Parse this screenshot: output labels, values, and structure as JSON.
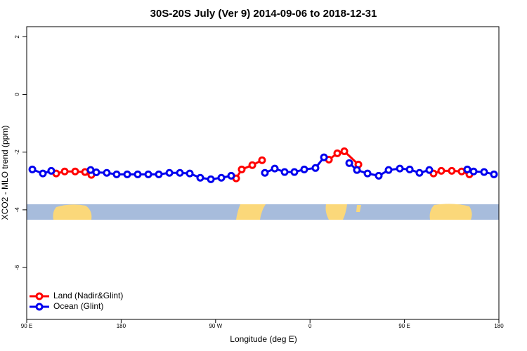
{
  "chart_data": {
    "type": "line",
    "title": "30S-20S July (Ver 9)   2014-09-06 to 2018-12-31",
    "xlabel": "Longitude (deg E)",
    "ylabel": "XCO2 - MLO trend (ppm)",
    "xlim": [
      90,
      540
    ],
    "xticks": [
      {
        "value": 90,
        "label": "90 E"
      },
      {
        "value": 180,
        "label": "180"
      },
      {
        "value": 270,
        "label": "90 W"
      },
      {
        "value": 360,
        "label": "0"
      },
      {
        "value": 450,
        "label": "90 E"
      },
      {
        "value": 540,
        "label": "180"
      }
    ],
    "ylim": [
      -7.8,
      2.35
    ],
    "yticks": [
      2,
      0,
      -2,
      -4,
      -6
    ],
    "legend": "bottomleft",
    "series": [
      {
        "name": "Land (Nadir&Glint)",
        "color": "#ff0000",
        "x": [
          118.1,
          126.2,
          136.2,
          145.6,
          151.6,
          null,
          289.6,
          294.9,
          305.0,
          314.3,
          null,
          378.0,
          386.0,
          392.7,
          406.1,
          null,
          477.7,
          485.1,
          495.1,
          504.5,
          511.9
        ],
        "values": [
          -2.74,
          -2.67,
          -2.67,
          -2.69,
          -2.79,
          null,
          -2.91,
          -2.6,
          -2.45,
          -2.28,
          null,
          -2.26,
          -2.04,
          -1.97,
          -2.43,
          null,
          -2.74,
          -2.65,
          -2.65,
          -2.67,
          -2.77
        ]
      },
      {
        "name": "Ocean (Glint)",
        "color": "#0000ee",
        "x": [
          95.4,
          105.4,
          113.4,
          null,
          150.9,
          156.3,
          166.3,
          175.7,
          185.8,
          195.8,
          205.9,
          215.9,
          226.0,
          236.0,
          245.4,
          255.4,
          265.5,
          275.5,
          284.9,
          null,
          317.0,
          326.4,
          335.8,
          345.1,
          354.5,
          365.2,
          373.3,
          null,
          397.4,
          404.7,
          414.8,
          425.5,
          434.9,
          445.6,
          455.0,
          464.3,
          473.7,
          null,
          509.9,
          515.9,
          525.9,
          535.3
        ],
        "values": [
          -2.6,
          -2.74,
          -2.65,
          null,
          -2.62,
          -2.7,
          -2.72,
          -2.77,
          -2.77,
          -2.77,
          -2.77,
          -2.77,
          -2.72,
          -2.72,
          -2.74,
          -2.89,
          -2.94,
          -2.89,
          -2.82,
          null,
          -2.72,
          -2.57,
          -2.69,
          -2.69,
          -2.6,
          -2.55,
          -2.18,
          null,
          -2.38,
          -2.62,
          -2.74,
          -2.82,
          -2.62,
          -2.57,
          -2.6,
          -2.72,
          -2.62,
          null,
          -2.6,
          -2.67,
          -2.69,
          -2.77
        ]
      }
    ]
  }
}
